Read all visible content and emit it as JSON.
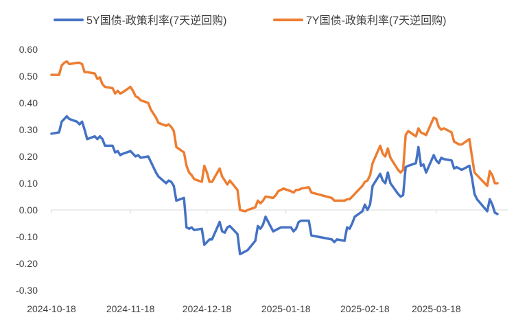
{
  "chart_data": {
    "type": "line",
    "title": "",
    "xlabel": "",
    "ylabel": "",
    "ylim": [
      -0.3,
      0.6
    ],
    "y_ticks": [
      -0.3,
      -0.2,
      -0.1,
      0.0,
      0.1,
      0.2,
      0.3,
      0.4,
      0.5,
      0.6
    ],
    "y_tick_labels": [
      "-0.30",
      "-0.20",
      "-0.10",
      "0.00",
      "0.10",
      "0.20",
      "0.30",
      "0.40",
      "0.50",
      "0.60"
    ],
    "x_range": [
      "2024-10-18",
      "2025-04-18"
    ],
    "x_tick_labels": [
      "2024-10-18",
      "2024-11-18",
      "2024-12-18",
      "2025-01-18",
      "2025-02-18",
      "2025-03-18"
    ],
    "grid": false,
    "legend_position": "top",
    "series": [
      {
        "name": "5Y国债-政策利率(7天逆回购)",
        "color": "#4472C4",
        "points": [
          [
            "2024-10-18",
            0.285
          ],
          [
            "2024-10-21",
            0.29
          ],
          [
            "2024-10-22",
            0.33
          ],
          [
            "2024-10-23",
            0.34
          ],
          [
            "2024-10-24",
            0.35
          ],
          [
            "2024-10-25",
            0.34
          ],
          [
            "2024-10-28",
            0.33
          ],
          [
            "2024-10-29",
            0.32
          ],
          [
            "2024-10-30",
            0.33
          ],
          [
            "2024-10-31",
            0.3
          ],
          [
            "2024-11-01",
            0.265
          ],
          [
            "2024-11-04",
            0.275
          ],
          [
            "2024-11-05",
            0.265
          ],
          [
            "2024-11-06",
            0.275
          ],
          [
            "2024-11-07",
            0.265
          ],
          [
            "2024-11-08",
            0.24
          ],
          [
            "2024-11-11",
            0.24
          ],
          [
            "2024-11-12",
            0.215
          ],
          [
            "2024-11-13",
            0.22
          ],
          [
            "2024-11-14",
            0.205
          ],
          [
            "2024-11-15",
            0.21
          ],
          [
            "2024-11-18",
            0.22
          ],
          [
            "2024-11-19",
            0.21
          ],
          [
            "2024-11-20",
            0.2
          ],
          [
            "2024-11-21",
            0.205
          ],
          [
            "2024-11-22",
            0.195
          ],
          [
            "2024-11-25",
            0.2
          ],
          [
            "2024-11-26",
            0.18
          ],
          [
            "2024-11-27",
            0.16
          ],
          [
            "2024-11-28",
            0.14
          ],
          [
            "2024-11-29",
            0.125
          ],
          [
            "2024-12-02",
            0.1
          ],
          [
            "2024-12-03",
            0.11
          ],
          [
            "2024-12-04",
            0.105
          ],
          [
            "2024-12-05",
            0.09
          ],
          [
            "2024-12-06",
            0.035
          ],
          [
            "2024-12-09",
            0.045
          ],
          [
            "2024-12-10",
            -0.065
          ],
          [
            "2024-12-11",
            -0.07
          ],
          [
            "2024-12-12",
            -0.065
          ],
          [
            "2024-12-13",
            -0.075
          ],
          [
            "2024-12-16",
            -0.07
          ],
          [
            "2024-12-17",
            -0.13
          ],
          [
            "2024-12-18",
            -0.12
          ],
          [
            "2024-12-19",
            -0.11
          ],
          [
            "2024-12-20",
            -0.11
          ],
          [
            "2024-12-23",
            -0.045
          ],
          [
            "2024-12-24",
            -0.08
          ],
          [
            "2024-12-25",
            -0.085
          ],
          [
            "2024-12-26",
            -0.065
          ],
          [
            "2024-12-27",
            -0.06
          ],
          [
            "2024-12-30",
            -0.09
          ],
          [
            "2024-12-31",
            -0.165
          ],
          [
            "2025-01-02",
            -0.155
          ],
          [
            "2025-01-03",
            -0.15
          ],
          [
            "2025-01-06",
            -0.115
          ],
          [
            "2025-01-07",
            -0.06
          ],
          [
            "2025-01-08",
            -0.07
          ],
          [
            "2025-01-09",
            -0.055
          ],
          [
            "2025-01-10",
            -0.025
          ],
          [
            "2025-01-13",
            -0.08
          ],
          [
            "2025-01-14",
            -0.075
          ],
          [
            "2025-01-15",
            -0.07
          ],
          [
            "2025-01-16",
            -0.065
          ],
          [
            "2025-01-17",
            -0.065
          ],
          [
            "2025-01-20",
            -0.065
          ],
          [
            "2025-01-21",
            -0.08
          ],
          [
            "2025-01-22",
            -0.07
          ],
          [
            "2025-01-23",
            -0.045
          ],
          [
            "2025-01-24",
            -0.04
          ],
          [
            "2025-01-27",
            -0.04
          ],
          [
            "2025-01-28",
            -0.095
          ],
          [
            "2025-02-05",
            -0.11
          ],
          [
            "2025-02-06",
            -0.12
          ],
          [
            "2025-02-07",
            -0.11
          ],
          [
            "2025-02-10",
            -0.115
          ],
          [
            "2025-02-11",
            -0.065
          ],
          [
            "2025-02-12",
            -0.07
          ],
          [
            "2025-02-13",
            -0.05
          ],
          [
            "2025-02-14",
            -0.025
          ],
          [
            "2025-02-17",
            -0.005
          ],
          [
            "2025-02-18",
            0.02
          ],
          [
            "2025-02-19",
            0.0
          ],
          [
            "2025-02-20",
            0.02
          ],
          [
            "2025-02-21",
            0.09
          ],
          [
            "2025-02-24",
            0.135
          ],
          [
            "2025-02-25",
            0.11
          ],
          [
            "2025-02-26",
            0.1
          ],
          [
            "2025-02-27",
            0.14
          ],
          [
            "2025-02-28",
            0.1
          ],
          [
            "2025-03-03",
            0.06
          ],
          [
            "2025-03-04",
            0.05
          ],
          [
            "2025-03-05",
            0.055
          ],
          [
            "2025-03-06",
            0.16
          ],
          [
            "2025-03-07",
            0.165
          ],
          [
            "2025-03-10",
            0.175
          ],
          [
            "2025-03-11",
            0.235
          ],
          [
            "2025-03-12",
            0.165
          ],
          [
            "2025-03-13",
            0.17
          ],
          [
            "2025-03-14",
            0.14
          ],
          [
            "2025-03-17",
            0.205
          ],
          [
            "2025-03-18",
            0.185
          ],
          [
            "2025-03-19",
            0.175
          ],
          [
            "2025-03-20",
            0.195
          ],
          [
            "2025-03-21",
            0.19
          ],
          [
            "2025-03-24",
            0.185
          ],
          [
            "2025-03-25",
            0.155
          ],
          [
            "2025-03-26",
            0.16
          ],
          [
            "2025-03-27",
            0.155
          ],
          [
            "2025-03-28",
            0.15
          ],
          [
            "2025-03-31",
            0.165
          ],
          [
            "2025-04-01",
            0.12
          ],
          [
            "2025-04-02",
            0.06
          ],
          [
            "2025-04-03",
            0.04
          ],
          [
            "2025-04-07",
            -0.005
          ],
          [
            "2025-04-08",
            0.04
          ],
          [
            "2025-04-09",
            0.02
          ],
          [
            "2025-04-10",
            -0.01
          ],
          [
            "2025-04-11",
            -0.015
          ]
        ]
      },
      {
        "name": "7Y国债-政策利率(7天逆回购)",
        "color": "#ED7D31",
        "points": [
          [
            "2024-10-18",
            0.505
          ],
          [
            "2024-10-21",
            0.505
          ],
          [
            "2024-10-22",
            0.54
          ],
          [
            "2024-10-23",
            0.55
          ],
          [
            "2024-10-24",
            0.555
          ],
          [
            "2024-10-25",
            0.545
          ],
          [
            "2024-10-28",
            0.55
          ],
          [
            "2024-10-29",
            0.55
          ],
          [
            "2024-10-30",
            0.545
          ],
          [
            "2024-10-31",
            0.515
          ],
          [
            "2024-11-01",
            0.515
          ],
          [
            "2024-11-04",
            0.51
          ],
          [
            "2024-11-05",
            0.49
          ],
          [
            "2024-11-06",
            0.495
          ],
          [
            "2024-11-07",
            0.47
          ],
          [
            "2024-11-08",
            0.46
          ],
          [
            "2024-11-11",
            0.455
          ],
          [
            "2024-11-12",
            0.435
          ],
          [
            "2024-11-13",
            0.445
          ],
          [
            "2024-11-14",
            0.435
          ],
          [
            "2024-11-15",
            0.44
          ],
          [
            "2024-11-18",
            0.46
          ],
          [
            "2024-11-19",
            0.445
          ],
          [
            "2024-11-20",
            0.425
          ],
          [
            "2024-11-21",
            0.42
          ],
          [
            "2024-11-22",
            0.41
          ],
          [
            "2024-11-25",
            0.4
          ],
          [
            "2024-11-26",
            0.375
          ],
          [
            "2024-11-27",
            0.36
          ],
          [
            "2024-11-28",
            0.345
          ],
          [
            "2024-11-29",
            0.325
          ],
          [
            "2024-12-02",
            0.315
          ],
          [
            "2024-12-03",
            0.32
          ],
          [
            "2024-12-04",
            0.31
          ],
          [
            "2024-12-05",
            0.295
          ],
          [
            "2024-12-06",
            0.235
          ],
          [
            "2024-12-09",
            0.215
          ],
          [
            "2024-12-10",
            0.165
          ],
          [
            "2024-12-11",
            0.14
          ],
          [
            "2024-12-12",
            0.13
          ],
          [
            "2024-12-13",
            0.115
          ],
          [
            "2024-12-16",
            0.105
          ],
          [
            "2024-12-17",
            0.165
          ],
          [
            "2024-12-18",
            0.14
          ],
          [
            "2024-12-19",
            0.105
          ],
          [
            "2024-12-20",
            0.105
          ],
          [
            "2024-12-23",
            0.155
          ],
          [
            "2024-12-24",
            0.125
          ],
          [
            "2024-12-25",
            0.11
          ],
          [
            "2024-12-26",
            0.095
          ],
          [
            "2024-12-27",
            0.11
          ],
          [
            "2024-12-30",
            0.075
          ],
          [
            "2024-12-31",
            0.0
          ],
          [
            "2025-01-02",
            -0.005
          ],
          [
            "2025-01-03",
            0.0
          ],
          [
            "2025-01-06",
            0.01
          ],
          [
            "2025-01-07",
            0.035
          ],
          [
            "2025-01-08",
            0.025
          ],
          [
            "2025-01-09",
            0.035
          ],
          [
            "2025-01-10",
            0.05
          ],
          [
            "2025-01-13",
            0.045
          ],
          [
            "2025-01-14",
            0.055
          ],
          [
            "2025-01-15",
            0.07
          ],
          [
            "2025-01-16",
            0.075
          ],
          [
            "2025-01-17",
            0.08
          ],
          [
            "2025-01-20",
            0.07
          ],
          [
            "2025-01-21",
            0.065
          ],
          [
            "2025-01-22",
            0.075
          ],
          [
            "2025-01-23",
            0.075
          ],
          [
            "2025-01-24",
            0.08
          ],
          [
            "2025-01-27",
            0.085
          ],
          [
            "2025-01-28",
            0.065
          ],
          [
            "2025-02-05",
            0.045
          ],
          [
            "2025-02-06",
            0.035
          ],
          [
            "2025-02-07",
            0.035
          ],
          [
            "2025-02-10",
            0.035
          ],
          [
            "2025-02-11",
            0.04
          ],
          [
            "2025-02-12",
            0.04
          ],
          [
            "2025-02-13",
            0.05
          ],
          [
            "2025-02-14",
            0.06
          ],
          [
            "2025-02-17",
            0.09
          ],
          [
            "2025-02-18",
            0.105
          ],
          [
            "2025-02-19",
            0.11
          ],
          [
            "2025-02-20",
            0.13
          ],
          [
            "2025-02-21",
            0.175
          ],
          [
            "2025-02-24",
            0.24
          ],
          [
            "2025-02-25",
            0.21
          ],
          [
            "2025-02-26",
            0.2
          ],
          [
            "2025-02-27",
            0.23
          ],
          [
            "2025-02-28",
            0.195
          ],
          [
            "2025-03-03",
            0.15
          ],
          [
            "2025-03-04",
            0.14
          ],
          [
            "2025-03-05",
            0.15
          ],
          [
            "2025-03-06",
            0.28
          ],
          [
            "2025-03-07",
            0.295
          ],
          [
            "2025-03-10",
            0.275
          ],
          [
            "2025-03-11",
            0.305
          ],
          [
            "2025-03-12",
            0.29
          ],
          [
            "2025-03-13",
            0.285
          ],
          [
            "2025-03-14",
            0.28
          ],
          [
            "2025-03-17",
            0.345
          ],
          [
            "2025-03-18",
            0.34
          ],
          [
            "2025-03-19",
            0.31
          ],
          [
            "2025-03-20",
            0.3
          ],
          [
            "2025-03-21",
            0.305
          ],
          [
            "2025-03-24",
            0.29
          ],
          [
            "2025-03-25",
            0.255
          ],
          [
            "2025-03-26",
            0.25
          ],
          [
            "2025-03-27",
            0.245
          ],
          [
            "2025-03-28",
            0.245
          ],
          [
            "2025-03-31",
            0.265
          ],
          [
            "2025-04-01",
            0.2
          ],
          [
            "2025-04-02",
            0.14
          ],
          [
            "2025-04-03",
            0.13
          ],
          [
            "2025-04-07",
            0.09
          ],
          [
            "2025-04-08",
            0.145
          ],
          [
            "2025-04-09",
            0.13
          ],
          [
            "2025-04-10",
            0.1
          ],
          [
            "2025-04-11",
            0.1
          ]
        ]
      }
    ]
  }
}
